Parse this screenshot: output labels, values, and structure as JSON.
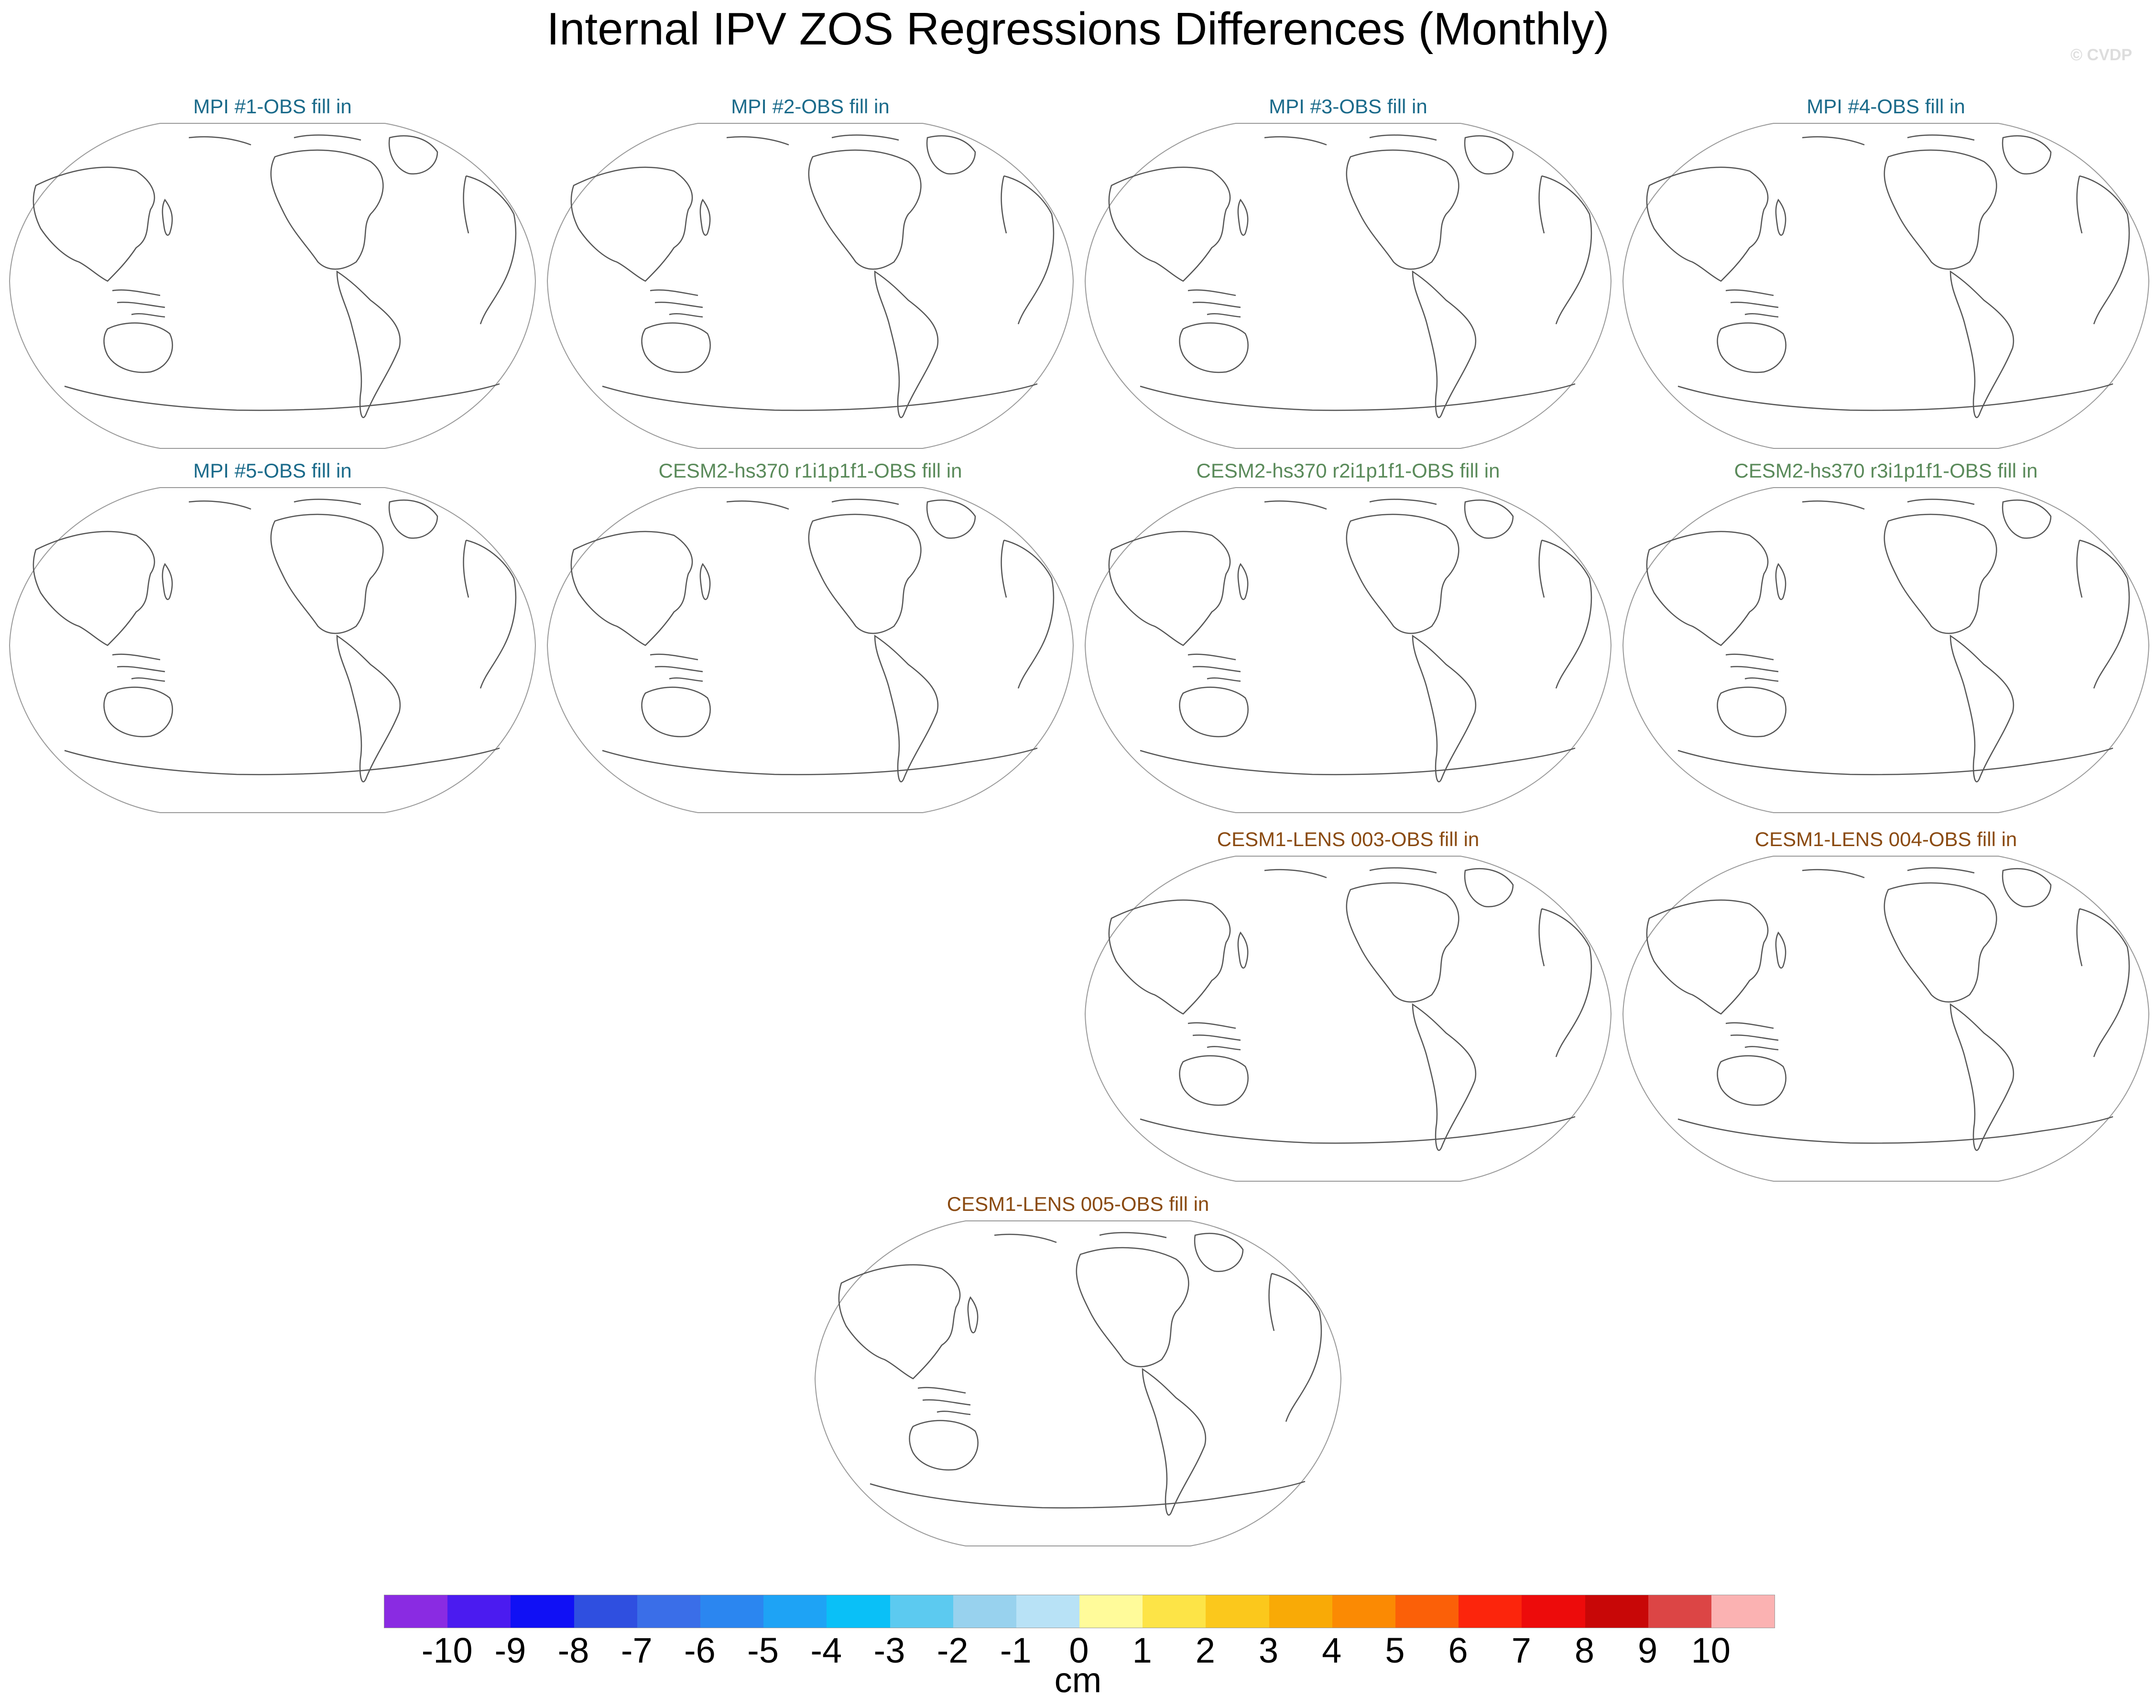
{
  "title": "Internal IPV ZOS Regressions Differences (Monthly)",
  "watermark": "© CVDP",
  "panels": [
    {
      "title": "MPI #1-OBS fill in",
      "color": "#1a6a8a"
    },
    {
      "title": "MPI #2-OBS fill in",
      "color": "#1a6a8a"
    },
    {
      "title": "MPI #3-OBS fill in",
      "color": "#1a6a8a"
    },
    {
      "title": "MPI #4-OBS fill in",
      "color": "#1a6a8a"
    },
    {
      "title": "MPI #5-OBS fill in",
      "color": "#1a6a8a"
    },
    {
      "title": "CESM2-hs370 r1i1p1f1-OBS fill in",
      "color": "#5a8a5a"
    },
    {
      "title": "CESM2-hs370 r2i1p1f1-OBS fill in",
      "color": "#5a8a5a"
    },
    {
      "title": "CESM2-hs370 r3i1p1f1-OBS fill in",
      "color": "#5a8a5a"
    },
    {
      "title": "CESM1-LENS 003-OBS fill in",
      "color": "#8a4a10"
    },
    {
      "title": "CESM1-LENS 004-OBS fill in",
      "color": "#8a4a10"
    },
    {
      "title": "CESM1-LENS 005-OBS fill in",
      "color": "#8a4a10"
    }
  ],
  "colorbar": {
    "colors": [
      "#8a2be2",
      "#4b1bf0",
      "#1010f5",
      "#2f4fe0",
      "#3a6ee8",
      "#2b86f0",
      "#1ea3f5",
      "#0ac0f7",
      "#5ccaf0",
      "#98d2ee",
      "#b8e2f6",
      "#fffb9a",
      "#fde447",
      "#fbc81c",
      "#f9aa06",
      "#fb8a03",
      "#fb6008",
      "#fc250c",
      "#ed0b0b",
      "#c80707",
      "#dc4545",
      "#fbb2b2"
    ],
    "labels": [
      "-10",
      "-9",
      "-8",
      "-7",
      "-6",
      "-5",
      "-4",
      "-3",
      "-2",
      "-1",
      "0",
      "1",
      "2",
      "3",
      "4",
      "5",
      "6",
      "7",
      "8",
      "9",
      "10"
    ],
    "unit": "cm"
  }
}
